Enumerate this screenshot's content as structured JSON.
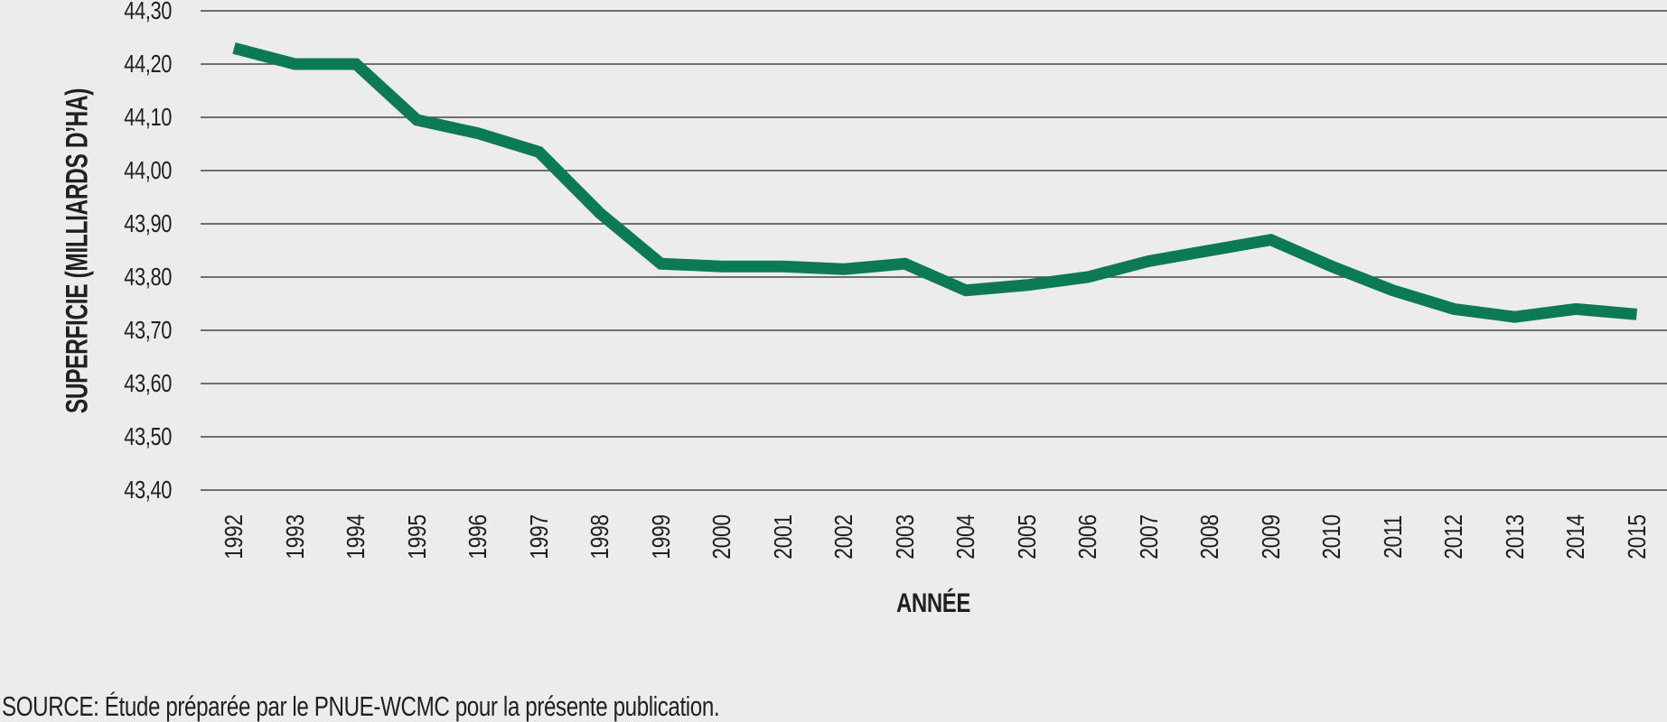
{
  "chart_data": {
    "type": "line",
    "title": "",
    "x": [
      1992,
      1993,
      1994,
      1995,
      1996,
      1997,
      1998,
      1999,
      2000,
      2001,
      2002,
      2003,
      2004,
      2005,
      2006,
      2007,
      2008,
      2009,
      2010,
      2011,
      2012,
      2013,
      2014,
      2015
    ],
    "series": [
      {
        "name": "Superficie",
        "values": [
          44.23,
          44.2,
          44.2,
          44.095,
          44.07,
          44.035,
          43.92,
          43.825,
          43.82,
          43.82,
          43.815,
          43.825,
          43.775,
          43.785,
          43.8,
          43.83,
          43.85,
          43.87,
          43.82,
          43.775,
          43.74,
          43.725,
          43.74,
          43.73
        ]
      }
    ],
    "xlabel": "ANNÉE",
    "ylabel": "SUPERFICIE (MILLIARDS D’HA)",
    "ylim": [
      43.4,
      44.3
    ],
    "ytick_step": 0.1,
    "ytick_labels": [
      "44,30",
      "44,20",
      "44,10",
      "44,00",
      "43,90",
      "43,80",
      "43,70",
      "43,60",
      "43,50",
      "43,40"
    ],
    "grid": true,
    "legend": "none",
    "line_color": "#0c7b54",
    "gridline_color": "#444444",
    "background_color": "#ececec",
    "text_color": "#231f20",
    "source_note": "SOURCE: Étude préparée par le PNUE-WCMC pour la présente publication."
  }
}
